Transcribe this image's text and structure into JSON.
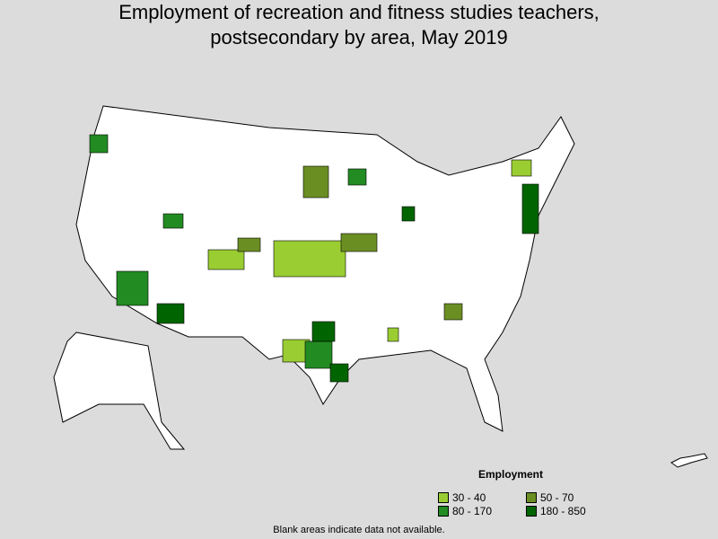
{
  "title": "Employment of recreation and fitness studies teachers, postsecondary by area, May 2019",
  "legend": {
    "title": "Employment",
    "items": [
      {
        "label": "30 - 40",
        "color": "#9acd32"
      },
      {
        "label": "50 - 70",
        "color": "#6b8e23"
      },
      {
        "label": "80 - 170",
        "color": "#228b22"
      },
      {
        "label": "180 - 850",
        "color": "#006400"
      }
    ]
  },
  "note": "Blank areas indicate data not available."
}
